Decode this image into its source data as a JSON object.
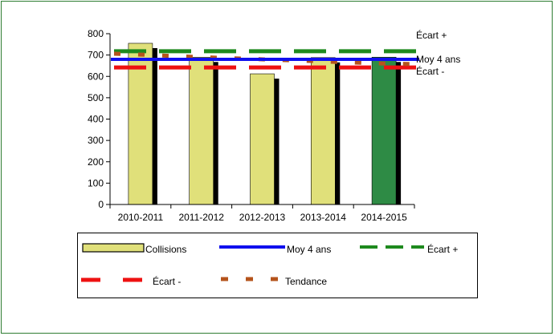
{
  "chart_data": {
    "type": "bar",
    "categories": [
      "2010-2011",
      "2011-2012",
      "2012-2013",
      "2013-2014",
      "2014-2015"
    ],
    "series": [
      {
        "name": "Collisions",
        "values": [
          755,
          690,
          612,
          688,
          690
        ],
        "colors": [
          "#e0e07a",
          "#e0e07a",
          "#e0e07a",
          "#e0e07a",
          "#2e8b45"
        ]
      }
    ],
    "lines": {
      "moy": {
        "name": "Moy 4 ans",
        "value": 680,
        "color": "#1010ee"
      },
      "ecart_plus": {
        "name": "Écart +",
        "value": 718,
        "color": "#1e8a1e"
      },
      "ecart_minus": {
        "name": "Écart -",
        "value": 642,
        "color": "#ee1111"
      },
      "tendance": {
        "name": "Tendance",
        "values": [
          702,
          690,
          680,
          670,
          660
        ],
        "color": "#b5541c"
      }
    },
    "right_labels": {
      "ecart_plus": "Écart +",
      "moy": "Moy 4 ans",
      "ecart_minus": "Écart -"
    },
    "ylim": [
      0,
      800
    ],
    "yticks": [
      0,
      100,
      200,
      300,
      400,
      500,
      600,
      700,
      800
    ],
    "xlabel": "",
    "ylabel": "",
    "legend_position": "bottom",
    "grid": false
  },
  "legend": {
    "collisions": "Collisions",
    "moy": "Moy 4 ans",
    "ecart_plus": "Écart +",
    "ecart_minus": "Écart -",
    "tendance": "Tendance"
  },
  "colors": {
    "frame": "#2e7d32",
    "bar": "#e0e07a",
    "bar_highlight": "#2e8b45",
    "shadow": "#000000"
  }
}
